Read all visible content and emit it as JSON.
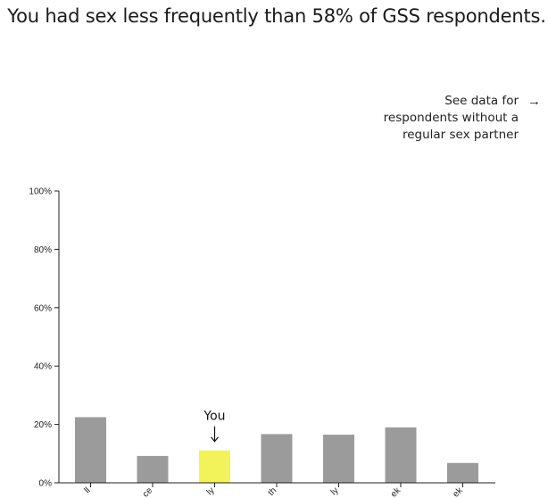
{
  "headline": "You had sex less frequently than 58% of GSS respondents.",
  "switch_link": {
    "label": "See data for respondents without a regular sex partner",
    "arrow_icon": "right-arrow-icon",
    "arrow_glyph": "→"
  },
  "chart_data": {
    "type": "bar",
    "categories": [
      "ll",
      "ce",
      "ly",
      "th",
      "ly",
      "ek",
      "ek"
    ],
    "values": [
      22.5,
      9.2,
      11.1,
      16.7,
      16.5,
      19.0,
      6.8
    ],
    "highlight_index": 2,
    "highlight_label": "You",
    "highlight_arrow": "↓",
    "ylim": [
      0,
      100
    ],
    "yticks": [
      0,
      20,
      40,
      60,
      80,
      100
    ],
    "ytick_labels": [
      "0%",
      "20%",
      "40%",
      "60%",
      "80%",
      "100%"
    ],
    "title": "",
    "xlabel": "",
    "ylabel": "",
    "colors": {
      "bar": "#9b9b9b",
      "highlight": "#f2f25a",
      "axis": "#222222"
    }
  }
}
